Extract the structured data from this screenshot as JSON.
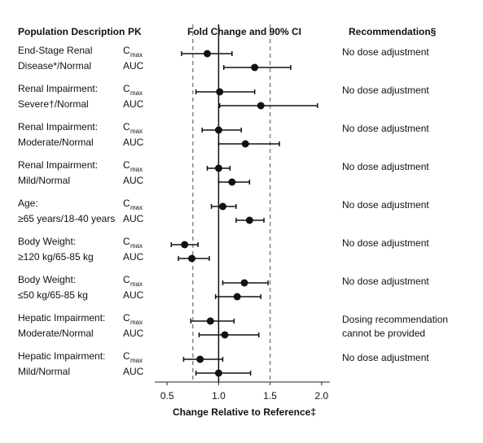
{
  "chart_data": {
    "type": "forest",
    "headers": {
      "description": "Population Description",
      "pk": "PK",
      "plot": "Fold Change and 90% CI",
      "recommendation": "Recommendation§"
    },
    "x_label": "Change Relative to Reference‡",
    "xlim": [
      0.38,
      2.08
    ],
    "xticks": [
      0.5,
      {
        "value": 1,
        "label": "1.0"
      },
      1.5,
      {
        "value": 2,
        "label": "2.0"
      }
    ],
    "reference_line": 1,
    "dashed_lines": [
      0.75,
      1.5
    ],
    "rows": [
      {
        "description": [
          "End-Stage Renal",
          "Disease*/Normal"
        ],
        "recommendation": [
          "No dose adjustment"
        ],
        "measures": [
          {
            "name": "C",
            "subscript": "max",
            "estimate": 0.89,
            "lower": 0.64,
            "upper": 1.13
          },
          {
            "name": "AUC",
            "estimate": 1.35,
            "lower": 1.05,
            "upper": 1.7
          }
        ]
      },
      {
        "description": [
          "Renal Impairment:",
          "Severe†/Normal"
        ],
        "recommendation": [
          "No dose adjustment"
        ],
        "measures": [
          {
            "name": "C",
            "subscript": "max",
            "estimate": 1.01,
            "lower": 0.78,
            "upper": 1.35
          },
          {
            "name": "AUC",
            "estimate": 1.41,
            "lower": 1.01,
            "upper": 1.96
          }
        ]
      },
      {
        "description": [
          "Renal Impairment:",
          "Moderate/Normal"
        ],
        "recommendation": [
          "No dose adjustment"
        ],
        "measures": [
          {
            "name": "C",
            "subscript": "max",
            "estimate": 1.0,
            "lower": 0.84,
            "upper": 1.22
          },
          {
            "name": "AUC",
            "estimate": 1.26,
            "lower": 1.0,
            "upper": 1.59
          }
        ]
      },
      {
        "description": [
          "Renal Impairment:",
          "Mild/Normal"
        ],
        "recommendation": [
          "No dose adjustment"
        ],
        "measures": [
          {
            "name": "C",
            "subscript": "max",
            "estimate": 1.0,
            "lower": 0.89,
            "upper": 1.11
          },
          {
            "name": "AUC",
            "estimate": 1.13,
            "lower": 1.0,
            "upper": 1.3
          }
        ]
      },
      {
        "description": [
          "Age:",
          "≥65 years/18-40 years"
        ],
        "recommendation": [
          "No dose adjustment"
        ],
        "measures": [
          {
            "name": "C",
            "subscript": "max",
            "estimate": 1.04,
            "lower": 0.93,
            "upper": 1.17
          },
          {
            "name": "AUC",
            "estimate": 1.3,
            "lower": 1.17,
            "upper": 1.44
          }
        ]
      },
      {
        "description": [
          "Body Weight:",
          "≥120 kg/65-85 kg"
        ],
        "recommendation": [
          "No dose adjustment"
        ],
        "measures": [
          {
            "name": "C",
            "subscript": "max",
            "estimate": 0.67,
            "lower": 0.54,
            "upper": 0.8
          },
          {
            "name": "AUC",
            "estimate": 0.74,
            "lower": 0.61,
            "upper": 0.91
          }
        ]
      },
      {
        "description": [
          "Body Weight:",
          "≤50 kg/65-85 kg"
        ],
        "recommendation": [
          "No dose adjustment"
        ],
        "measures": [
          {
            "name": "C",
            "subscript": "max",
            "estimate": 1.25,
            "lower": 1.04,
            "upper": 1.48
          },
          {
            "name": "AUC",
            "estimate": 1.18,
            "lower": 0.97,
            "upper": 1.41
          }
        ]
      },
      {
        "description": [
          "Hepatic Impairment:",
          "Moderate/Normal"
        ],
        "recommendation": [
          "Dosing recommendation",
          "cannot be provided"
        ],
        "measures": [
          {
            "name": "C",
            "subscript": "max",
            "estimate": 0.92,
            "lower": 0.73,
            "upper": 1.15
          },
          {
            "name": "AUC",
            "estimate": 1.06,
            "lower": 0.81,
            "upper": 1.39
          }
        ]
      },
      {
        "description": [
          "Hepatic Impairment:",
          "Mild/Normal"
        ],
        "recommendation": [
          "No dose adjustment"
        ],
        "measures": [
          {
            "name": "C",
            "subscript": "max",
            "estimate": 0.82,
            "lower": 0.66,
            "upper": 1.04
          },
          {
            "name": "AUC",
            "estimate": 1.0,
            "lower": 0.78,
            "upper": 1.31
          }
        ]
      }
    ]
  }
}
